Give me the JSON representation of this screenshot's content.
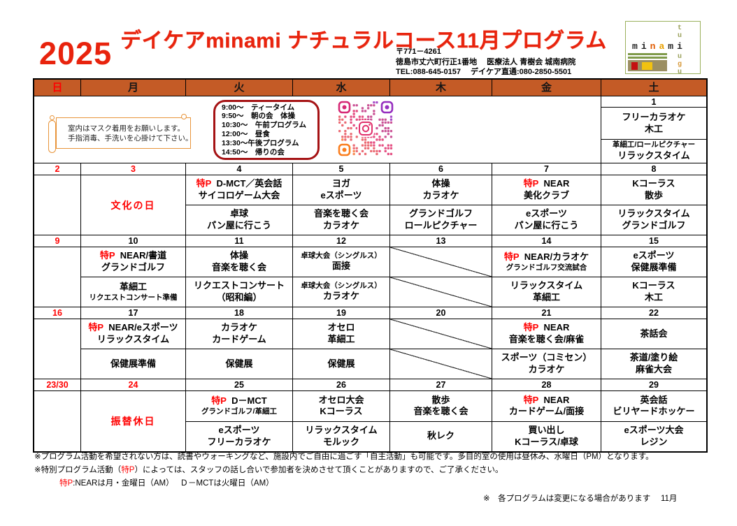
{
  "page": {
    "year": "2025",
    "title": "デイケアminami ナチュラルコース11月プログラム",
    "address": {
      "postal": "〒771－4261",
      "line1": "徳島市丈六町行正1番地　 医療法人 青樹会 城南病院",
      "line2": "TEL:088-645-0157　 デイケア直通:080-2850-5501"
    },
    "logo": {
      "word": [
        {
          "ch": "m",
          "color": "#222222"
        },
        {
          "ch": "i",
          "color": "#222222"
        },
        {
          "ch": "n",
          "color": "#e05a00"
        },
        {
          "ch": "a",
          "color": "#e8a000"
        },
        {
          "ch": "m",
          "color": "#222222"
        },
        {
          "ch": "i",
          "color": "#222222"
        }
      ],
      "vertical_top": [
        {
          "ch": "t",
          "color": "#9aa05a"
        },
        {
          "ch": "u",
          "color": "#9aa05a"
        }
      ],
      "vertical_bottom": [
        {
          "ch": "u",
          "color": "#9aa05a"
        },
        {
          "ch": "g",
          "color": "#d79a3c"
        },
        {
          "ch": "u",
          "color": "#9aa05a"
        }
      ]
    },
    "colors": {
      "weekday_header_bg": "#c45b26",
      "accent_red": "#ff0000",
      "title_red": "#e8230d",
      "banner_border_orange": "#e8943a",
      "schedule_border_darkred": "#a51214",
      "logo_green": "#9ab05c",
      "qr_pink": "#e1306c"
    }
  },
  "notices": {
    "mask_banner_lines": [
      "室内はマスク着用をお願いします。",
      "手指消毒、手洗いを心掛けて下さい。"
    ],
    "daily_schedule_lines": [
      " 9:00～　ティータイム",
      " 9:50～　朝の会　体操",
      "10:30～　午前プログラム",
      "12:00～　昼食",
      "13:30～午後プログラム",
      "14:50～　帰りの会"
    ],
    "qr_label": "DAYCARE_MINAMI"
  },
  "calendar": {
    "weekday_headers": [
      {
        "label": "日",
        "red": true
      },
      {
        "label": "月",
        "red": false
      },
      {
        "label": "火",
        "red": false
      },
      {
        "label": "水",
        "red": false
      },
      {
        "label": "木",
        "red": false
      },
      {
        "label": "金",
        "red": false
      },
      {
        "label": "土",
        "red": false
      }
    ],
    "weeks": [
      {
        "info_week": true,
        "days": [
          {
            "date": "",
            "date_red": true,
            "type": "infospan"
          },
          {
            "date": "",
            "date_red": false,
            "type": "infospan"
          },
          {
            "date": "",
            "date_red": false,
            "type": "infospan"
          },
          {
            "date": "",
            "date_red": false,
            "type": "infospan"
          },
          {
            "date": "",
            "date_red": false,
            "type": "infospan"
          },
          {
            "date": "",
            "date_red": false,
            "type": "infospan"
          },
          {
            "date": "1",
            "date_red": false,
            "type": "split",
            "am": [
              {
                "text": "フリーカラオケ"
              },
              {
                "text": "木工"
              }
            ],
            "pm": [
              {
                "text": "革細工/ロールピクチャー",
                "small": true
              },
              {
                "text": "リラックスタイム"
              }
            ]
          }
        ]
      },
      {
        "days": [
          {
            "date": "2",
            "date_red": true,
            "type": "empty"
          },
          {
            "date": "3",
            "date_red": true,
            "type": "holiday",
            "text": "文化の日"
          },
          {
            "date": "4",
            "date_red": false,
            "type": "split",
            "am": [
              {
                "toku": "特P",
                "text": "D-MCT／英会話"
              },
              {
                "text": "サイコロゲーム大会"
              }
            ],
            "pm": [
              {
                "text": "卓球"
              },
              {
                "text": "パン屋に行こう"
              }
            ]
          },
          {
            "date": "5",
            "date_red": false,
            "type": "split",
            "am": [
              {
                "text": "ヨガ"
              },
              {
                "text": "eスポーツ"
              }
            ],
            "pm": [
              {
                "text": "音楽を聴く会"
              },
              {
                "text": "カラオケ"
              }
            ]
          },
          {
            "date": "6",
            "date_red": false,
            "type": "split",
            "am": [
              {
                "text": "体操"
              },
              {
                "text": "カラオケ"
              }
            ],
            "pm": [
              {
                "text": "グランドゴルフ"
              },
              {
                "text": "ロールピクチャー"
              }
            ]
          },
          {
            "date": "7",
            "date_red": false,
            "type": "split",
            "am": [
              {
                "toku": "特P",
                "text": "NEAR"
              },
              {
                "text": "美化クラブ"
              }
            ],
            "pm": [
              {
                "text": "eスポーツ"
              },
              {
                "text": "パン屋に行こう"
              }
            ]
          },
          {
            "date": "8",
            "date_red": false,
            "type": "split",
            "am": [
              {
                "text": "Kコーラス"
              },
              {
                "text": "散歩"
              }
            ],
            "pm": [
              {
                "text": "リラックスタイム"
              },
              {
                "text": "グランドゴルフ"
              }
            ]
          }
        ]
      },
      {
        "days": [
          {
            "date": "9",
            "date_red": true,
            "type": "empty"
          },
          {
            "date": "10",
            "date_red": false,
            "type": "split",
            "am": [
              {
                "toku": "特P",
                "text": "NEAR/書道"
              },
              {
                "text": "グランドゴルフ"
              }
            ],
            "pm": [
              {
                "text": "革細工"
              },
              {
                "text": "リクエストコンサート準備",
                "small": true
              }
            ]
          },
          {
            "date": "11",
            "date_red": false,
            "type": "split",
            "am": [
              {
                "text": "体操"
              },
              {
                "text": "音楽を聴く会"
              }
            ],
            "pm": [
              {
                "text": "リクエストコンサート"
              },
              {
                "text": "（昭和編）"
              }
            ]
          },
          {
            "date": "12",
            "date_red": false,
            "type": "split",
            "am": [
              {
                "text": "卓球大会（シングルス）",
                "small": true
              },
              {
                "text": "面接"
              }
            ],
            "pm": [
              {
                "text": "卓球大会（シングルス）",
                "small": true
              },
              {
                "text": "カラオケ"
              }
            ]
          },
          {
            "date": "13",
            "date_red": false,
            "type": "crossed"
          },
          {
            "date": "14",
            "date_red": false,
            "type": "split",
            "am": [
              {
                "toku": "特P",
                "text": "NEAR/カラオケ"
              },
              {
                "text": "グランドゴルフ交流試合",
                "small": true
              }
            ],
            "pm": [
              {
                "text": "リラックスタイム"
              },
              {
                "text": "革細工"
              }
            ]
          },
          {
            "date": "15",
            "date_red": false,
            "type": "split",
            "am": [
              {
                "text": "eスポーツ"
              },
              {
                "text": "保健展準備"
              }
            ],
            "pm": [
              {
                "text": "Kコーラス"
              },
              {
                "text": "木工"
              }
            ]
          }
        ]
      },
      {
        "days": [
          {
            "date": "16",
            "date_red": true,
            "type": "empty"
          },
          {
            "date": "17",
            "date_red": false,
            "type": "split",
            "am": [
              {
                "toku": "特P",
                "text": "NEAR/eスポーツ"
              },
              {
                "text": "リラックスタイム"
              }
            ],
            "pm": [
              {
                "text": "保健展準備"
              }
            ]
          },
          {
            "date": "18",
            "date_red": false,
            "type": "split",
            "am": [
              {
                "text": "カラオケ"
              },
              {
                "text": "カードゲーム"
              }
            ],
            "pm": [
              {
                "text": "保健展"
              }
            ]
          },
          {
            "date": "19",
            "date_red": false,
            "type": "split",
            "am": [
              {
                "text": "オセロ"
              },
              {
                "text": "革細工"
              }
            ],
            "pm": [
              {
                "text": "保健展"
              }
            ]
          },
          {
            "date": "20",
            "date_red": false,
            "type": "crossed"
          },
          {
            "date": "21",
            "date_red": false,
            "type": "split",
            "am": [
              {
                "toku": "特P",
                "text": "NEAR"
              },
              {
                "text": "音楽を聴く会/麻雀"
              }
            ],
            "pm": [
              {
                "text": "スポーツ（コミセン）"
              },
              {
                "text": "カラオケ"
              }
            ]
          },
          {
            "date": "22",
            "date_red": false,
            "type": "split",
            "am": [
              {
                "text": "茶話会"
              }
            ],
            "pm": [
              {
                "text": "茶道/塗り絵"
              },
              {
                "text": "麻雀大会"
              }
            ]
          }
        ]
      },
      {
        "days": [
          {
            "date": "23/30",
            "date_red": true,
            "type": "empty"
          },
          {
            "date": "24",
            "date_red": true,
            "type": "holiday",
            "text": "振替休日"
          },
          {
            "date": "25",
            "date_red": false,
            "type": "split",
            "am": [
              {
                "toku": "特P",
                "text": "D－MCT"
              },
              {
                "text": "グランドゴルフ/革細工",
                "small": true
              }
            ],
            "pm": [
              {
                "text": "eスポーツ"
              },
              {
                "text": "フリーカラオケ"
              }
            ]
          },
          {
            "date": "26",
            "date_red": false,
            "type": "split",
            "am": [
              {
                "text": "オセロ大会"
              },
              {
                "text": "Kコーラス"
              }
            ],
            "pm": [
              {
                "text": "リラックスタイム"
              },
              {
                "text": "モルック"
              }
            ]
          },
          {
            "date": "27",
            "date_red": false,
            "type": "split",
            "am": [
              {
                "text": "散歩"
              },
              {
                "text": "音楽を聴く会"
              }
            ],
            "pm": [
              {
                "text": "秋レク"
              }
            ]
          },
          {
            "date": "28",
            "date_red": false,
            "type": "split",
            "am": [
              {
                "toku": "特P",
                "text": "NEAR"
              },
              {
                "text": "カードゲーム/面接"
              }
            ],
            "pm": [
              {
                "text": "買い出し"
              },
              {
                "text": "Kコーラス/卓球"
              }
            ]
          },
          {
            "date": "29",
            "date_red": false,
            "type": "split",
            "am": [
              {
                "text": "英会話"
              },
              {
                "text": "ビリヤードホッケー"
              }
            ],
            "pm": [
              {
                "text": "eスポーツ大会"
              },
              {
                "text": "レジン"
              }
            ]
          }
        ]
      }
    ]
  },
  "footnotes": [
    {
      "segments": [
        {
          "text": "※プログラム活動を希望されない方は、読書やウォーキングなど、施設内でご自由に過ごす「自主活動」も可能です。多目的室の使用は昼休み、水曜日（PM）となります。"
        }
      ]
    },
    {
      "segments": [
        {
          "text": "※特別プログラム活動（"
        },
        {
          "text": "特P",
          "red": true
        },
        {
          "text": "）によっては、スタッフの話し合いで参加者を決めさせて頂くことがありますので、ご了承ください。"
        }
      ]
    },
    {
      "indent": true,
      "segments": [
        {
          "text": "特P",
          "red": true
        },
        {
          "text": ":NEARは月・金曜日（AM）　 Ｄ－MCTは火曜日（AM）"
        }
      ]
    },
    {
      "right": true,
      "segments": [
        {
          "text": "※　各プログラムは変更になる場合があります　 11月"
        }
      ]
    }
  ]
}
